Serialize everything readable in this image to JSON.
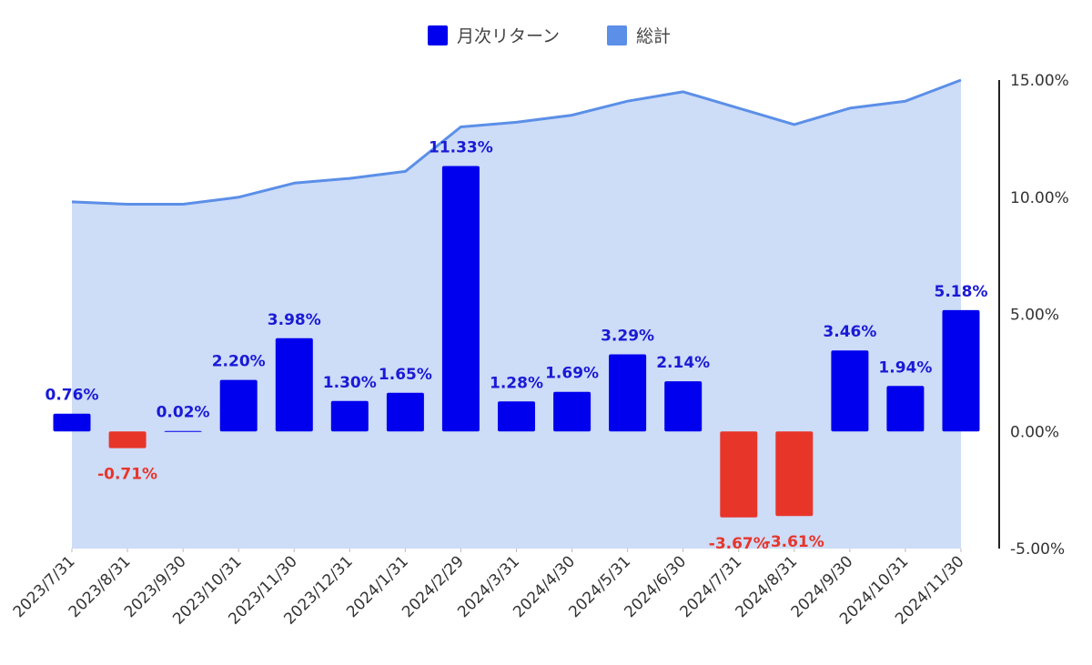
{
  "chart_data": {
    "type": "bar",
    "categories": [
      "2023/7/31",
      "2023/8/31",
      "2023/9/30",
      "2023/10/31",
      "2023/11/30",
      "2023/12/31",
      "2024/1/31",
      "2024/2/29",
      "2024/3/31",
      "2024/4/30",
      "2024/5/31",
      "2024/6/30",
      "2024/7/31",
      "2024/8/31",
      "2024/9/30",
      "2024/10/31",
      "2024/11/30"
    ],
    "series": [
      {
        "name": "月次リターン",
        "kind": "bar",
        "values": [
          0.76,
          -0.71,
          0.02,
          2.2,
          3.98,
          1.3,
          1.65,
          11.33,
          1.28,
          1.69,
          3.29,
          2.14,
          -3.67,
          -3.61,
          3.46,
          1.94,
          5.18
        ],
        "labels": [
          "0.76%",
          "-0.71%",
          "0.02%",
          "2.20%",
          "3.98%",
          "1.30%",
          "1.65%",
          "11.33%",
          "1.28%",
          "1.69%",
          "3.29%",
          "2.14%",
          "-3.67%",
          "-3.61%",
          "3.46%",
          "1.94%",
          "5.18%"
        ]
      },
      {
        "name": "総計",
        "kind": "area",
        "values": [
          9.8,
          9.7,
          9.7,
          10.0,
          10.6,
          10.8,
          11.1,
          13.0,
          13.2,
          13.5,
          14.1,
          14.5,
          13.8,
          13.1,
          13.8,
          14.1,
          15.0
        ]
      }
    ],
    "yaxis": {
      "position": "right",
      "ylim": [
        -5,
        15
      ],
      "ticks": [
        15,
        10,
        5,
        0,
        -5
      ],
      "tick_labels": [
        "15.00%",
        "10.00%",
        "5.00%",
        "0.00%",
        "-5.00%"
      ]
    },
    "legend": {
      "placement": "top-center"
    },
    "grid": false,
    "colors": {
      "positive_bar": "#0000ee",
      "negative_bar": "#e8352a",
      "positive_label": "#1a1ad6",
      "negative_label": "#e8352a",
      "area_fill": "#cddcf7",
      "area_line": "#5b8fe8",
      "legend_bar": "#0000ee",
      "legend_area": "#5b8fe8"
    }
  }
}
